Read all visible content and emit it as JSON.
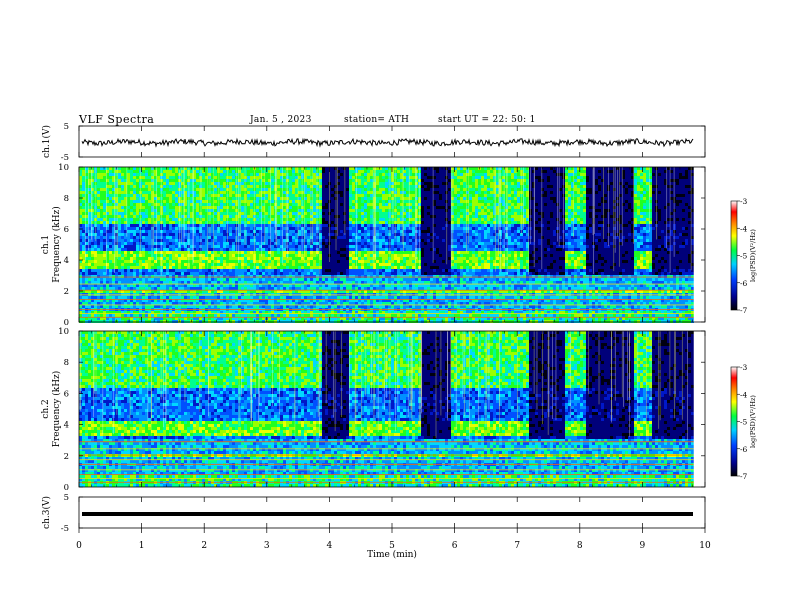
{
  "header": {
    "title": "VLF  Spectra",
    "date": "Jan.  5  , 2023",
    "station": "station= ATH",
    "start": "start  UT  =    22: 50: 1"
  },
  "chart_data": [
    {
      "type": "line",
      "name": "ch1-waveform",
      "ylabel": "ch.1(V)",
      "ylim": [
        -5,
        5
      ],
      "yticks": [
        {
          "v": 5,
          "label": "5"
        },
        {
          "v": -5,
          "label": "-5"
        }
      ],
      "xlim": [
        0,
        10
      ],
      "note_level": -0.3
    },
    {
      "type": "heatmap",
      "name": "ch1-spectrogram",
      "ylabel": "ch.1\nFrequency  (kHz)",
      "ylim": [
        0,
        10
      ],
      "yticks": [
        {
          "v": 0,
          "label": "0"
        },
        {
          "v": 2,
          "label": "2"
        },
        {
          "v": 4,
          "label": "4"
        },
        {
          "v": 6,
          "label": "6"
        },
        {
          "v": 8,
          "label": "8"
        },
        {
          "v": 10,
          "label": "10"
        }
      ],
      "xlim": [
        0,
        9.82
      ],
      "colorbar": {
        "label": "log(PSD)(V²/Hz)",
        "range": [
          -7,
          -3
        ],
        "ticks": [
          {
            "v": -3,
            "label": "-3"
          },
          {
            "v": -4,
            "label": "-4"
          },
          {
            "v": -5,
            "label": "-5"
          },
          {
            "v": -6,
            "label": "-6"
          },
          {
            "v": -7,
            "label": "-7"
          }
        ]
      },
      "dark_intervals_min": [
        [
          3.9,
          4.3
        ],
        [
          5.45,
          5.95
        ],
        [
          7.2,
          7.75
        ],
        [
          8.1,
          8.85
        ],
        [
          9.15,
          9.82
        ]
      ],
      "band_khz": [
        3.6,
        4.6
      ]
    },
    {
      "type": "heatmap",
      "name": "ch2-spectrogram",
      "ylabel": "ch.2\nFrequency  (kHz)",
      "ylim": [
        0,
        10
      ],
      "yticks": [
        {
          "v": 0,
          "label": "0"
        },
        {
          "v": 2,
          "label": "2"
        },
        {
          "v": 4,
          "label": "4"
        },
        {
          "v": 6,
          "label": "6"
        },
        {
          "v": 8,
          "label": "8"
        },
        {
          "v": 10,
          "label": "10"
        }
      ],
      "xlim": [
        0,
        9.82
      ],
      "colorbar": {
        "label": "log(PSD)(V²/Hz)",
        "range": [
          -7,
          -3
        ],
        "ticks": [
          {
            "v": -3,
            "label": "-3"
          },
          {
            "v": -4,
            "label": "-4"
          },
          {
            "v": -5,
            "label": "-5"
          },
          {
            "v": -6,
            "label": "-6"
          },
          {
            "v": -7,
            "label": "-7"
          }
        ]
      },
      "dark_intervals_min": [
        [
          3.9,
          4.3
        ],
        [
          5.45,
          5.95
        ],
        [
          7.2,
          7.75
        ],
        [
          8.1,
          8.85
        ],
        [
          9.15,
          9.82
        ]
      ],
      "band_khz": [
        3.4,
        4.4
      ]
    },
    {
      "type": "line",
      "name": "ch3-waveform",
      "ylabel": "ch.3(V)",
      "ylim": [
        -5,
        5
      ],
      "yticks": [
        {
          "v": 5,
          "label": "5"
        },
        {
          "v": -5,
          "label": "-5"
        }
      ],
      "xlim": [
        0,
        10
      ],
      "level": -0.5
    }
  ],
  "xaxis": {
    "label": "Time  (min)",
    "range": [
      0,
      10
    ],
    "ticks": [
      {
        "v": 0,
        "label": "0"
      },
      {
        "v": 1,
        "label": "1"
      },
      {
        "v": 2,
        "label": "2"
      },
      {
        "v": 3,
        "label": "3"
      },
      {
        "v": 4,
        "label": "4"
      },
      {
        "v": 5,
        "label": "5"
      },
      {
        "v": 6,
        "label": "6"
      },
      {
        "v": 7,
        "label": "7"
      },
      {
        "v": 8,
        "label": "8"
      },
      {
        "v": 9,
        "label": "9"
      },
      {
        "v": 10,
        "label": "10"
      }
    ]
  }
}
